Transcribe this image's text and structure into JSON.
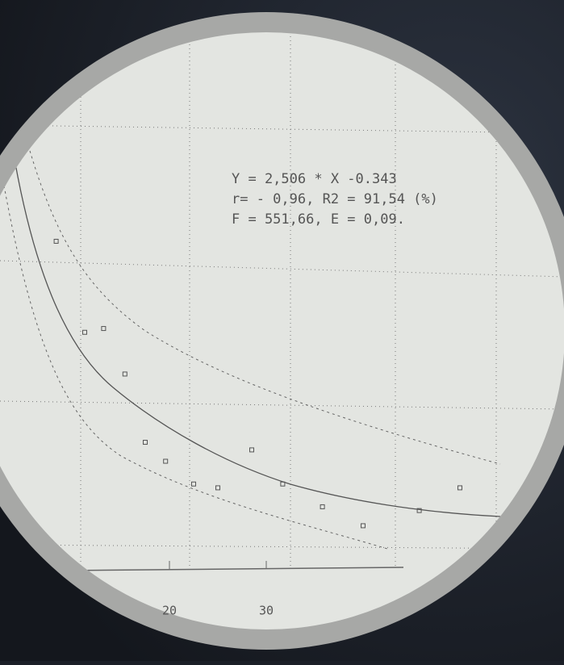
{
  "chart_data": {
    "type": "scatter",
    "annotations": [
      "Y = 2,506 * X -0.343",
      "r= - 0,96,  R2 = 91,54 (%)",
      "F = 551,66, E = 0,09."
    ],
    "x": [
      8.3,
      11.25,
      13.2,
      15.4,
      17.5,
      19.6,
      22.5,
      25,
      28.5,
      31.7,
      35.8,
      40,
      45.8,
      50
    ],
    "values": [
      1.41,
      1.17,
      1.18,
      1.06,
      0.88,
      0.83,
      0.77,
      0.76,
      0.86,
      0.77,
      0.71,
      0.66,
      0.7,
      0.76
    ],
    "color": "#555555",
    "xlim": [
      2.5,
      52.5
    ],
    "ylim": [
      0.546,
      1.727
    ],
    "xticks": [
      20,
      30
    ]
  }
}
